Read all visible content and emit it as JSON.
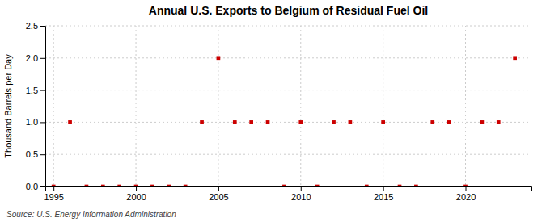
{
  "chart_data": {
    "type": "scatter",
    "title": "Annual U.S. Exports to Belgium of Residual Fuel Oil",
    "ylabel": "Thousand Barrels per Day",
    "source": "Source: U.S. Energy Information Administration",
    "x": [
      1995,
      1996,
      1997,
      1998,
      1999,
      2000,
      2001,
      2002,
      2003,
      2004,
      2005,
      2006,
      2007,
      2008,
      2009,
      2010,
      2011,
      2012,
      2013,
      2014,
      2015,
      2016,
      2017,
      2018,
      2019,
      2020,
      2021,
      2022,
      2023
    ],
    "values": [
      0,
      1.0,
      0,
      0,
      0,
      0,
      0,
      0,
      0,
      1.0,
      2.0,
      1.0,
      1.0,
      1.0,
      0,
      1.0,
      0,
      1.0,
      1.0,
      0,
      1.0,
      0,
      0,
      1.0,
      1.0,
      0,
      1.0,
      1.0,
      2.0
    ],
    "color": "#cc0000",
    "marker": "square",
    "xlim": [
      1994.5,
      2024
    ],
    "xticks": [
      1995,
      2000,
      2005,
      2010,
      2015,
      2020
    ],
    "ylim": [
      0,
      2.5
    ],
    "yticks": [
      {
        "value": 0.0,
        "label": "0.0"
      },
      0.5,
      {
        "value": 1.0,
        "label": "1.0"
      },
      1.5,
      {
        "value": 2.0,
        "label": "2.0"
      },
      2.5
    ],
    "grid": true
  }
}
